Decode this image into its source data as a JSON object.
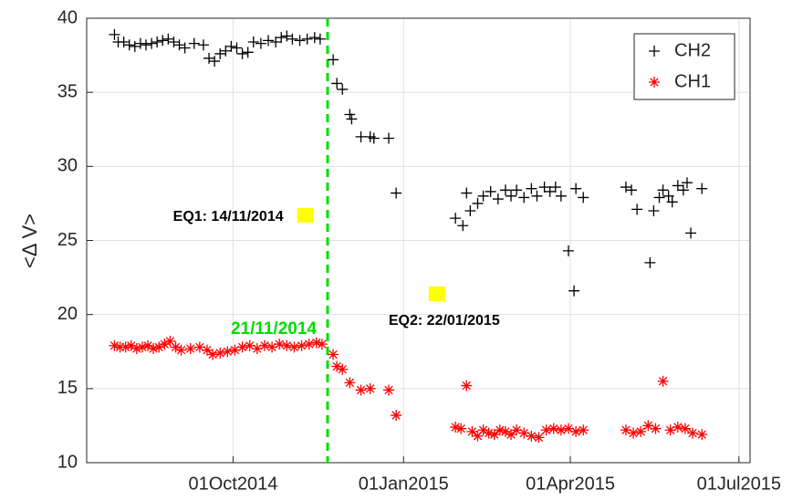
{
  "chart_data": {
    "type": "scatter",
    "ylabel": "<Δ V>",
    "xlim": [
      "2014-07-14",
      "2015-07-07"
    ],
    "xticks": [
      {
        "value": "2014-10-01",
        "label": "01Oct2014"
      },
      {
        "value": "2015-01-01",
        "label": "01Jan2015"
      },
      {
        "value": "2015-04-01",
        "label": "01Apr2015"
      },
      {
        "value": "2015-07-01",
        "label": "01Jul2015"
      }
    ],
    "ylim": [
      10,
      40
    ],
    "yticks": [
      10,
      15,
      20,
      25,
      30,
      35,
      40
    ],
    "grid": true,
    "legend": "upper right",
    "series": [
      {
        "name": "CH2",
        "color": "#000000",
        "marker": "plus",
        "x": [
          "2014-07-29",
          "2014-07-31",
          "2014-08-03",
          "2014-08-06",
          "2014-08-09",
          "2014-08-12",
          "2014-08-15",
          "2014-08-18",
          "2014-08-21",
          "2014-08-24",
          "2014-08-27",
          "2014-08-30",
          "2014-09-02",
          "2014-09-05",
          "2014-09-10",
          "2014-09-15",
          "2014-09-18",
          "2014-09-21",
          "2014-09-24",
          "2014-09-27",
          "2014-09-30",
          "2014-10-03",
          "2014-10-06",
          "2014-10-09",
          "2014-10-12",
          "2014-10-16",
          "2014-10-20",
          "2014-10-24",
          "2014-10-27",
          "2014-10-30",
          "2014-11-02",
          "2014-11-06",
          "2014-11-10",
          "2014-11-14",
          "2014-11-17",
          "2014-11-24",
          "2014-11-26",
          "2014-11-29",
          "2014-12-03",
          "2014-12-04",
          "2014-12-09",
          "2014-12-14",
          "2014-12-16",
          "2014-12-24",
          "2014-12-28",
          "2015-01-29",
          "2015-02-02",
          "2015-02-04",
          "2015-02-06",
          "2015-02-10",
          "2015-02-13",
          "2015-02-17",
          "2015-02-21",
          "2015-02-25",
          "2015-02-28",
          "2015-03-03",
          "2015-03-07",
          "2015-03-11",
          "2015-03-14",
          "2015-03-18",
          "2015-03-21",
          "2015-03-24",
          "2015-03-27",
          "2015-03-31",
          "2015-04-03",
          "2015-04-04",
          "2015-04-08",
          "2015-05-01",
          "2015-05-04",
          "2015-05-07",
          "2015-05-14",
          "2015-05-16",
          "2015-05-19",
          "2015-05-21",
          "2015-05-24",
          "2015-05-26",
          "2015-05-29",
          "2015-06-01",
          "2015-06-03",
          "2015-06-05",
          "2015-06-11"
        ],
        "values": [
          38.9,
          38.4,
          38.4,
          38.2,
          38.1,
          38.3,
          38.2,
          38.3,
          38.4,
          38.5,
          38.6,
          38.4,
          38.2,
          38.0,
          38.3,
          38.2,
          37.3,
          37.1,
          37.6,
          37.8,
          38.1,
          38.0,
          37.6,
          37.7,
          38.4,
          38.3,
          38.5,
          38.4,
          38.7,
          38.8,
          38.6,
          38.5,
          38.6,
          38.7,
          38.6,
          37.2,
          35.6,
          35.2,
          33.5,
          33.2,
          32.0,
          32.0,
          31.9,
          31.9,
          28.2,
          26.5,
          26.0,
          28.2,
          27.0,
          27.5,
          28.0,
          28.3,
          27.8,
          28.4,
          28.0,
          28.4,
          27.9,
          28.5,
          28.0,
          28.6,
          28.3,
          28.6,
          28.0,
          24.3,
          21.6,
          28.5,
          27.9,
          28.6,
          28.4,
          27.1,
          23.5,
          27.0,
          27.9,
          28.4,
          28.0,
          27.6,
          28.7,
          28.4,
          28.9,
          25.5,
          28.5
        ]
      },
      {
        "name": "CH1",
        "color": "#ff0000",
        "marker": "star",
        "x": [
          "2014-07-29",
          "2014-08-01",
          "2014-08-04",
          "2014-08-07",
          "2014-08-10",
          "2014-08-13",
          "2014-08-16",
          "2014-08-19",
          "2014-08-22",
          "2014-08-25",
          "2014-08-28",
          "2014-08-31",
          "2014-09-03",
          "2014-09-08",
          "2014-09-13",
          "2014-09-17",
          "2014-09-20",
          "2014-09-24",
          "2014-09-28",
          "2014-10-02",
          "2014-10-06",
          "2014-10-10",
          "2014-10-14",
          "2014-10-18",
          "2014-10-22",
          "2014-10-26",
          "2014-10-30",
          "2014-11-03",
          "2014-11-07",
          "2014-11-11",
          "2014-11-15",
          "2014-11-18",
          "2014-11-24",
          "2014-11-26",
          "2014-11-29",
          "2014-12-03",
          "2014-12-09",
          "2014-12-14",
          "2014-12-24",
          "2014-12-28",
          "2015-01-29",
          "2015-02-01",
          "2015-02-04",
          "2015-02-07",
          "2015-02-10",
          "2015-02-13",
          "2015-02-16",
          "2015-02-19",
          "2015-02-22",
          "2015-02-25",
          "2015-02-28",
          "2015-03-03",
          "2015-03-07",
          "2015-03-11",
          "2015-03-15",
          "2015-03-19",
          "2015-03-23",
          "2015-03-27",
          "2015-03-31",
          "2015-04-04",
          "2015-04-08",
          "2015-05-01",
          "2015-05-05",
          "2015-05-09",
          "2015-05-13",
          "2015-05-17",
          "2015-05-21",
          "2015-05-25",
          "2015-05-29",
          "2015-06-02",
          "2015-06-06",
          "2015-06-11"
        ],
        "values": [
          17.9,
          17.8,
          17.8,
          17.9,
          17.7,
          17.8,
          17.9,
          17.7,
          17.8,
          18.0,
          18.2,
          17.8,
          17.6,
          17.7,
          17.8,
          17.6,
          17.3,
          17.4,
          17.5,
          17.6,
          17.8,
          17.9,
          17.7,
          17.9,
          17.8,
          18.0,
          17.9,
          17.8,
          17.9,
          18.0,
          18.1,
          18.0,
          17.3,
          16.5,
          16.3,
          15.4,
          14.9,
          15.0,
          14.9,
          13.2,
          12.4,
          12.3,
          15.2,
          12.1,
          11.8,
          12.2,
          12.0,
          11.9,
          12.2,
          12.1,
          11.9,
          12.2,
          12.0,
          11.8,
          11.7,
          12.2,
          12.3,
          12.2,
          12.3,
          12.1,
          12.2,
          12.2,
          12.0,
          12.1,
          12.5,
          12.3,
          15.5,
          12.2,
          12.4,
          12.3,
          12.0,
          11.9
        ]
      }
    ],
    "vline": {
      "x": "2014-11-21",
      "label": "21/11/2014",
      "color": "#00dd00"
    },
    "annotations": [
      {
        "label": "EQ1: 14/11/2014",
        "x": "2014-11-09",
        "y": 26.7,
        "color": "#ffff00"
      },
      {
        "label": "EQ2: 22/01/2015",
        "x": "2015-01-19",
        "y": 21.4,
        "color": "#ffff00"
      }
    ]
  }
}
